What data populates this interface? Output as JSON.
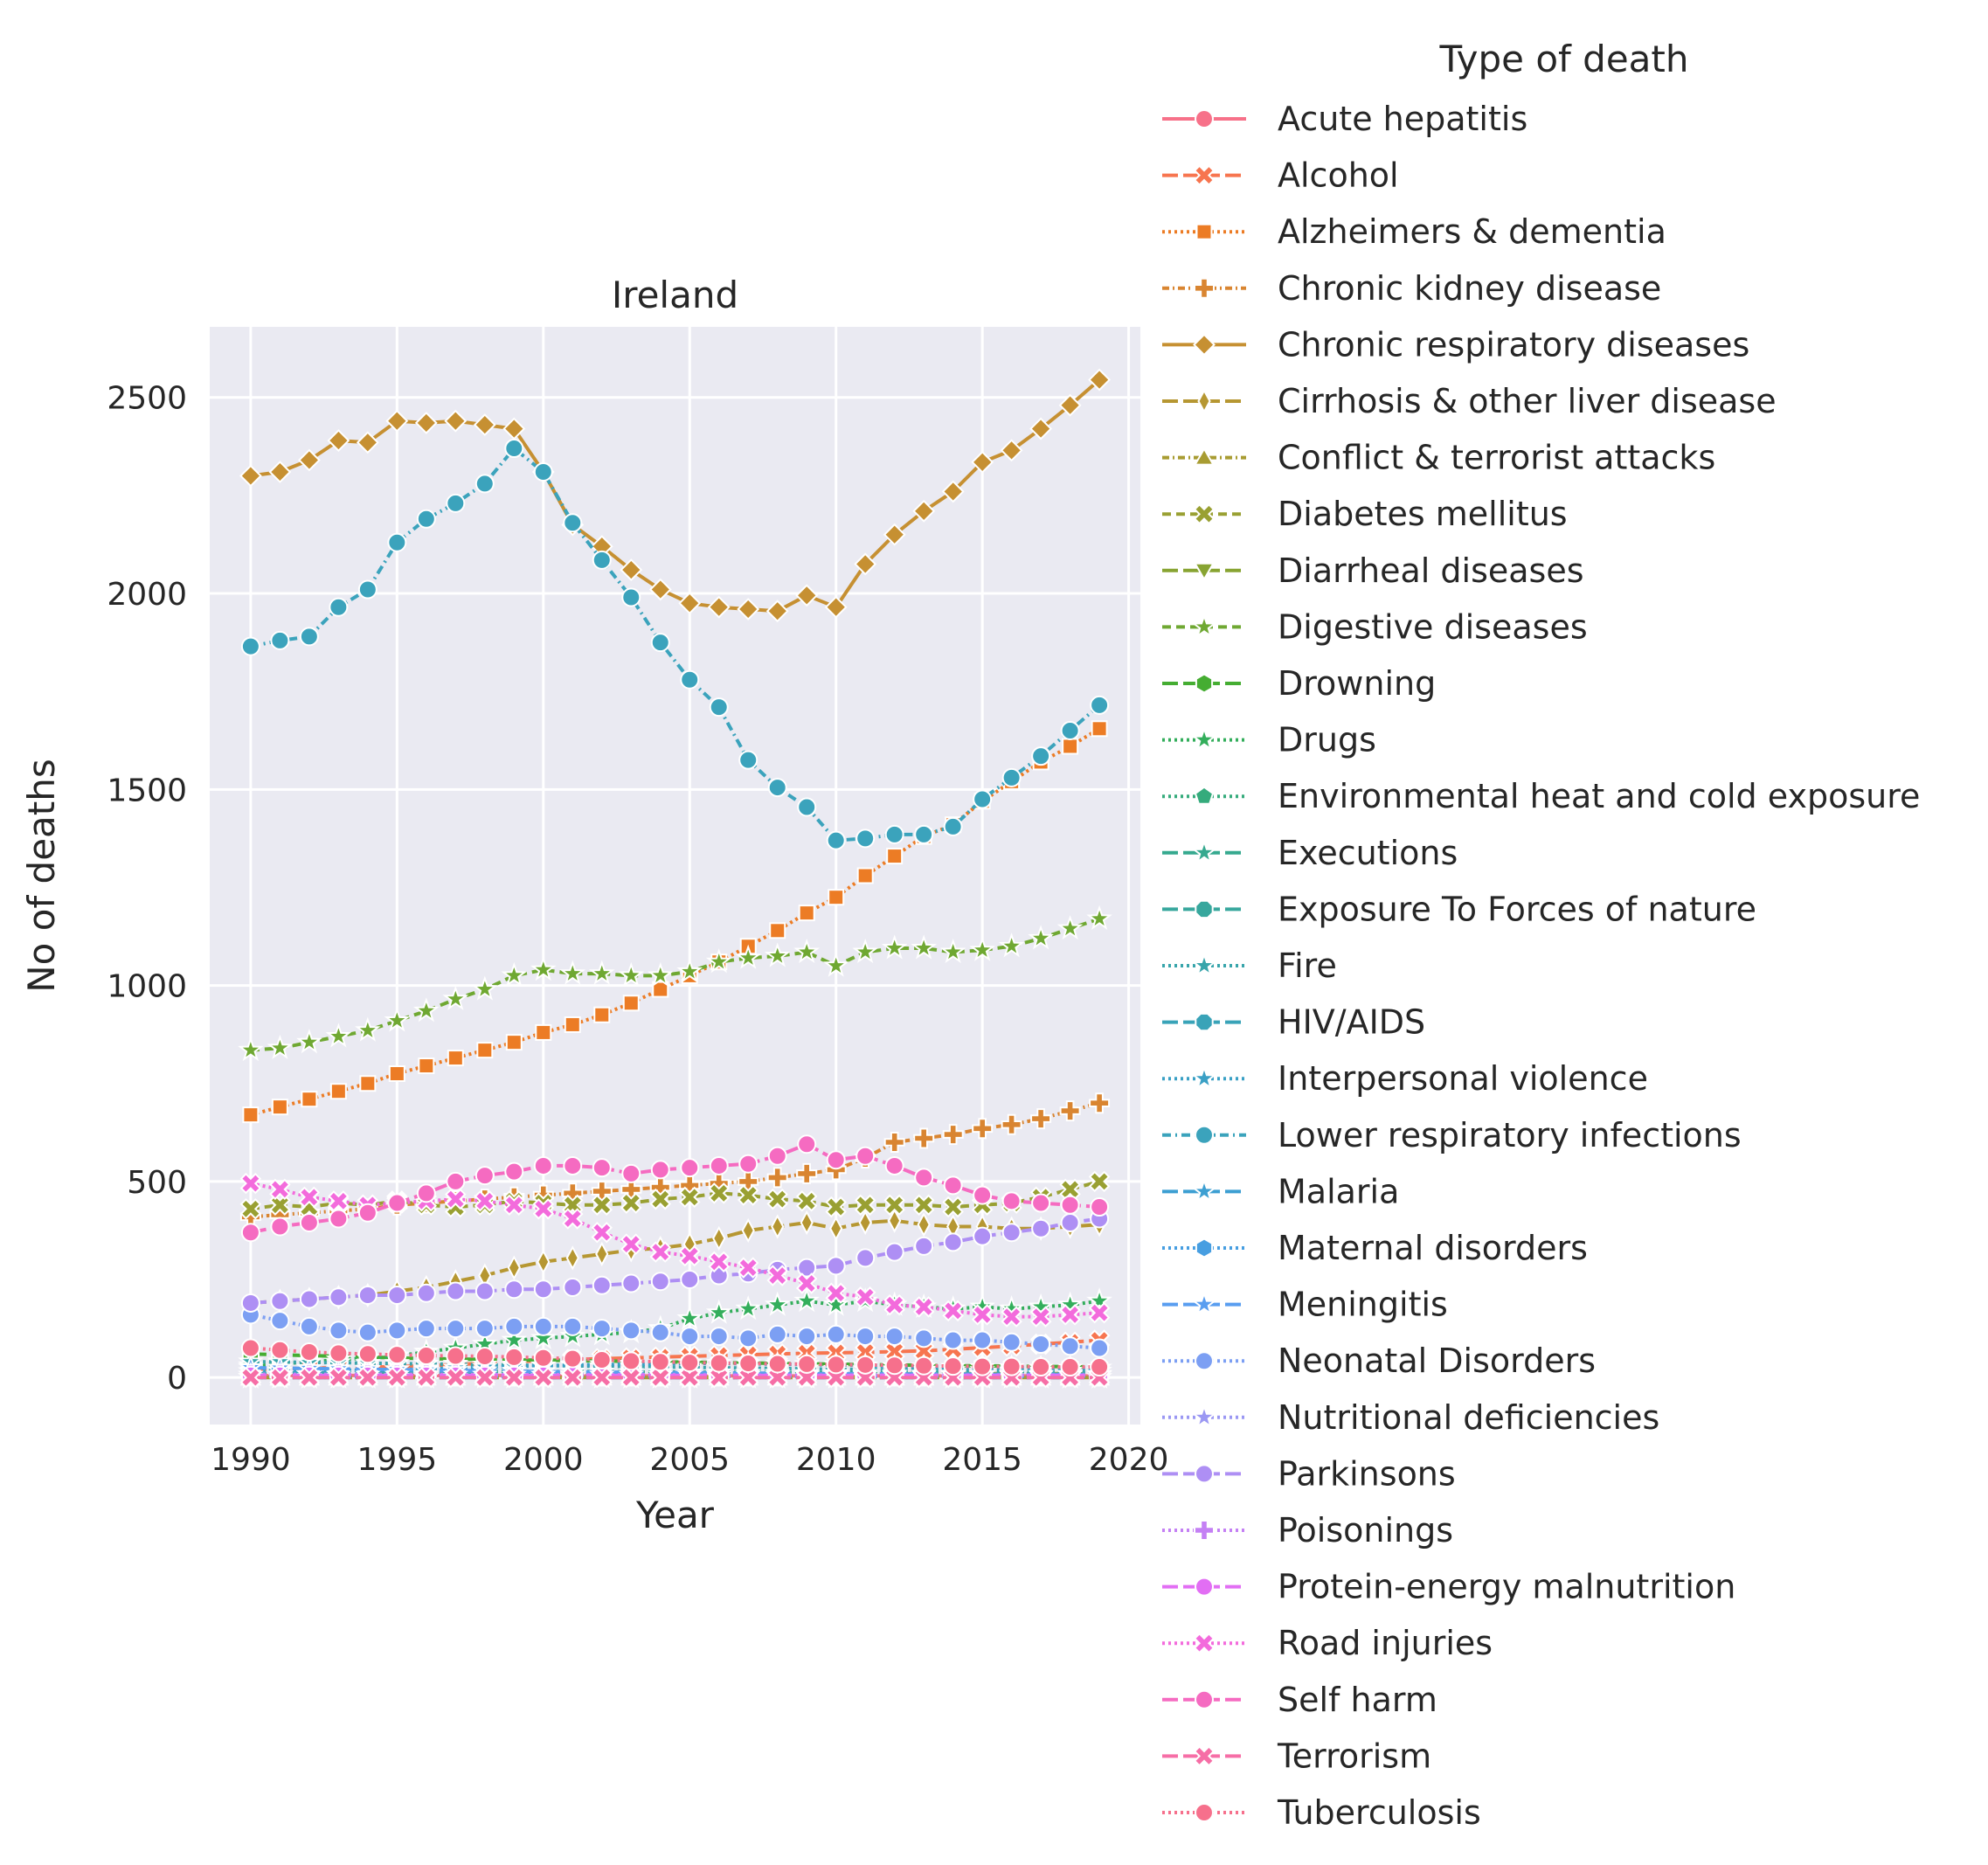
{
  "chart_data": {
    "type": "line",
    "title": "Ireland",
    "xlabel": "Year",
    "ylabel": "No of deaths",
    "xlim": [
      1988.6,
      2020.4
    ],
    "ylim": [
      -120,
      2680
    ],
    "xticks": [
      1990,
      1995,
      2000,
      2005,
      2010,
      2015,
      2020
    ],
    "yticks": [
      0,
      500,
      1000,
      1500,
      2000,
      2500
    ],
    "grid": true,
    "legend_title": "Type of death",
    "legend_placement": "outside-right",
    "x": [
      1990,
      1991,
      1992,
      1993,
      1994,
      1995,
      1996,
      1997,
      1998,
      1999,
      2000,
      2001,
      2002,
      2003,
      2004,
      2005,
      2006,
      2007,
      2008,
      2009,
      2010,
      2011,
      2012,
      2013,
      2014,
      2015,
      2016,
      2017,
      2018,
      2019
    ],
    "series": [
      {
        "name": "Acute hepatitis",
        "color": "#f77189",
        "dash": "",
        "marker": "circle",
        "values": [
          5,
          5,
          5,
          5,
          5,
          5,
          5,
          5,
          5,
          5,
          4,
          4,
          4,
          4,
          4,
          4,
          4,
          4,
          4,
          4,
          4,
          4,
          4,
          4,
          4,
          4,
          4,
          4,
          4,
          4
        ]
      },
      {
        "name": "Alcohol",
        "color": "#f7754f",
        "dash": "18,6",
        "marker": "x",
        "values": [
          20,
          22,
          24,
          25,
          26,
          28,
          30,
          33,
          36,
          40,
          43,
          46,
          48,
          50,
          52,
          54,
          56,
          58,
          60,
          62,
          63,
          64,
          66,
          68,
          72,
          76,
          80,
          85,
          90,
          95
        ]
      },
      {
        "name": "Alzheimers & dementia",
        "color": "#ec7c25",
        "dash": "3,4",
        "marker": "square",
        "values": [
          670,
          690,
          710,
          730,
          750,
          775,
          795,
          815,
          835,
          855,
          880,
          900,
          925,
          955,
          990,
          1025,
          1060,
          1100,
          1140,
          1185,
          1225,
          1280,
          1330,
          1380,
          1410,
          1470,
          1520,
          1570,
          1610,
          1655
        ]
      },
      {
        "name": "Chronic kidney disease",
        "color": "#d98531",
        "dash": "8,4,2,4",
        "marker": "plus",
        "values": [
          410,
          415,
          420,
          425,
          430,
          440,
          445,
          450,
          455,
          460,
          465,
          470,
          475,
          480,
          485,
          490,
          495,
          500,
          510,
          520,
          530,
          560,
          600,
          610,
          620,
          635,
          645,
          660,
          680,
          700
        ]
      },
      {
        "name": "Chronic respiratory diseases",
        "color": "#c69032",
        "dash": "",
        "marker": "diamond",
        "values": [
          2300,
          2310,
          2340,
          2390,
          2385,
          2440,
          2435,
          2440,
          2430,
          2420,
          2310,
          2175,
          2120,
          2060,
          2010,
          1975,
          1965,
          1960,
          1955,
          1995,
          1965,
          2075,
          2150,
          2210,
          2260,
          2335,
          2365,
          2420,
          2480,
          2545
        ]
      },
      {
        "name": "Cirrhosis & other liver disease",
        "color": "#b69732",
        "dash": "18,6",
        "marker": "thin-diamond",
        "values": [
          190,
          195,
          200,
          205,
          210,
          220,
          230,
          245,
          260,
          280,
          295,
          305,
          315,
          325,
          330,
          340,
          355,
          375,
          385,
          395,
          380,
          395,
          400,
          390,
          385,
          385,
          380,
          380,
          385,
          390
        ]
      },
      {
        "name": "Conflict & terrorist attacks",
        "color": "#a89c32",
        "dash": "8,4,2,4",
        "marker": "triangle-up",
        "values": [
          0,
          0,
          0,
          0,
          0,
          0,
          0,
          0,
          0,
          0,
          0,
          0,
          0,
          0,
          0,
          0,
          0,
          0,
          0,
          0,
          0,
          0,
          0,
          0,
          0,
          0,
          0,
          0,
          0,
          0
        ]
      },
      {
        "name": "Diabetes mellitus",
        "color": "#99a032",
        "dash": "10,6",
        "marker": "x",
        "values": [
          430,
          440,
          435,
          445,
          440,
          450,
          440,
          435,
          440,
          450,
          445,
          440,
          440,
          445,
          455,
          460,
          470,
          465,
          455,
          450,
          435,
          440,
          440,
          440,
          435,
          440,
          445,
          460,
          480,
          500
        ]
      },
      {
        "name": "Diarrheal diseases",
        "color": "#88a432",
        "dash": "18,6",
        "marker": "triangle-down",
        "values": [
          8,
          8,
          8,
          8,
          8,
          8,
          8,
          8,
          8,
          8,
          8,
          8,
          8,
          8,
          9,
          9,
          9,
          9,
          9,
          9,
          9,
          9,
          9,
          10,
          10,
          10,
          10,
          10,
          10,
          10
        ]
      },
      {
        "name": "Digestive diseases",
        "color": "#6fa832",
        "dash": "10,6",
        "marker": "star",
        "values": [
          835,
          840,
          855,
          870,
          885,
          910,
          935,
          965,
          990,
          1025,
          1040,
          1030,
          1030,
          1025,
          1025,
          1035,
          1060,
          1070,
          1075,
          1085,
          1050,
          1085,
          1095,
          1095,
          1085,
          1090,
          1100,
          1120,
          1145,
          1170
        ]
      },
      {
        "name": "Drowning",
        "color": "#45ad32",
        "dash": "18,6",
        "marker": "hexagon",
        "values": [
          60,
          58,
          56,
          54,
          52,
          50,
          48,
          47,
          46,
          45,
          44,
          43,
          42,
          41,
          40,
          39,
          38,
          37,
          36,
          35,
          34,
          33,
          32,
          31,
          30,
          30,
          29,
          28,
          28,
          27
        ]
      },
      {
        "name": "Drugs",
        "color": "#33ae5b",
        "dash": "3,4",
        "marker": "star",
        "values": [
          30,
          35,
          40,
          45,
          50,
          55,
          65,
          75,
          85,
          95,
          100,
          105,
          110,
          115,
          125,
          150,
          165,
          175,
          185,
          195,
          185,
          195,
          185,
          180,
          175,
          180,
          175,
          180,
          185,
          195
        ]
      },
      {
        "name": "Environmental heat and cold exposure",
        "color": "#35ab7c",
        "dash": "3,4",
        "marker": "pentagon",
        "values": [
          20,
          20,
          19,
          19,
          18,
          18,
          17,
          17,
          16,
          16,
          15,
          15,
          15,
          14,
          14,
          14,
          13,
          13,
          13,
          12,
          12,
          12,
          12,
          12,
          11,
          11,
          11,
          11,
          11,
          11
        ]
      },
      {
        "name": "Executions",
        "color": "#36a98f",
        "dash": "18,6",
        "marker": "star",
        "values": [
          0,
          0,
          0,
          0,
          0,
          0,
          0,
          0,
          0,
          0,
          0,
          0,
          0,
          0,
          0,
          0,
          0,
          0,
          0,
          0,
          0,
          0,
          0,
          0,
          0,
          0,
          0,
          0,
          0,
          0
        ]
      },
      {
        "name": "Exposure To Forces of nature",
        "color": "#37a79d",
        "dash": "18,6",
        "marker": "octagon",
        "values": [
          1,
          1,
          1,
          1,
          1,
          1,
          1,
          1,
          1,
          1,
          1,
          1,
          1,
          1,
          1,
          1,
          1,
          1,
          1,
          1,
          1,
          1,
          1,
          1,
          1,
          1,
          1,
          1,
          1,
          1
        ]
      },
      {
        "name": "Fire",
        "color": "#38a5ab",
        "dash": "3,4",
        "marker": "star",
        "values": [
          40,
          40,
          38,
          38,
          36,
          36,
          34,
          34,
          32,
          32,
          30,
          30,
          28,
          28,
          27,
          26,
          25,
          24,
          23,
          22,
          21,
          20,
          20,
          19,
          18,
          18,
          17,
          17,
          16,
          16
        ]
      },
      {
        "name": "HIV/AIDS",
        "color": "#39a3b8",
        "dash": "18,6",
        "marker": "octagon",
        "values": [
          10,
          11,
          12,
          13,
          14,
          15,
          13,
          10,
          8,
          7,
          6,
          6,
          6,
          6,
          6,
          6,
          6,
          6,
          6,
          6,
          6,
          6,
          6,
          5,
          5,
          5,
          5,
          5,
          5,
          5
        ]
      },
      {
        "name": "Interpersonal violence",
        "color": "#3aa0c5",
        "dash": "3,4",
        "marker": "star",
        "values": [
          15,
          16,
          17,
          18,
          19,
          20,
          22,
          24,
          26,
          28,
          30,
          32,
          33,
          34,
          35,
          36,
          36,
          35,
          34,
          33,
          32,
          30,
          28,
          27,
          26,
          25,
          25,
          24,
          24,
          24
        ]
      },
      {
        "name": "Lower respiratory infections",
        "color": "#3ba3bc",
        "dash": "10,5,2,5",
        "marker": "circle",
        "values": [
          1865,
          1880,
          1890,
          1965,
          2010,
          2130,
          2190,
          2230,
          2280,
          2370,
          2310,
          2180,
          2085,
          1990,
          1875,
          1780,
          1710,
          1575,
          1505,
          1455,
          1370,
          1375,
          1385,
          1385,
          1405,
          1475,
          1530,
          1585,
          1650,
          1715
        ]
      },
      {
        "name": "Malaria",
        "color": "#3d9fd2",
        "dash": "18,6",
        "marker": "star",
        "values": [
          0,
          0,
          0,
          0,
          0,
          0,
          0,
          0,
          0,
          0,
          0,
          0,
          0,
          0,
          0,
          0,
          0,
          0,
          0,
          0,
          0,
          0,
          0,
          0,
          0,
          0,
          0,
          0,
          0,
          0
        ]
      },
      {
        "name": "Maternal disorders",
        "color": "#479ee1",
        "dash": "3,4",
        "marker": "hexagon",
        "values": [
          3,
          3,
          3,
          3,
          3,
          3,
          3,
          3,
          3,
          3,
          3,
          3,
          3,
          3,
          3,
          3,
          3,
          3,
          3,
          3,
          3,
          3,
          3,
          3,
          3,
          3,
          3,
          3,
          3,
          3
        ]
      },
      {
        "name": "Meningitis",
        "color": "#5a9ef0",
        "dash": "18,6",
        "marker": "star",
        "values": [
          25,
          24,
          23,
          22,
          21,
          20,
          19,
          18,
          17,
          16,
          15,
          14,
          14,
          13,
          13,
          12,
          12,
          11,
          11,
          10,
          10,
          10,
          9,
          9,
          9,
          8,
          8,
          8,
          8,
          8
        ]
      },
      {
        "name": "Neonatal Disorders",
        "color": "#7c9ff3",
        "dash": "3,4",
        "marker": "circle",
        "values": [
          160,
          145,
          130,
          120,
          115,
          120,
          125,
          125,
          125,
          130,
          130,
          130,
          125,
          120,
          115,
          105,
          105,
          100,
          110,
          105,
          110,
          105,
          105,
          100,
          95,
          95,
          90,
          85,
          80,
          75
        ]
      },
      {
        "name": "Nutritional deficiencies",
        "color": "#9b98f3",
        "dash": "3,4",
        "marker": "star",
        "values": [
          6,
          6,
          6,
          6,
          6,
          6,
          6,
          6,
          6,
          6,
          6,
          6,
          6,
          6,
          6,
          6,
          6,
          6,
          6,
          6,
          6,
          6,
          6,
          6,
          6,
          6,
          6,
          6,
          6,
          6
        ]
      },
      {
        "name": "Parkinsons",
        "color": "#ae8ff4",
        "dash": "18,6",
        "marker": "circle",
        "values": [
          190,
          195,
          200,
          205,
          210,
          210,
          215,
          220,
          220,
          225,
          225,
          230,
          235,
          240,
          245,
          250,
          260,
          265,
          275,
          280,
          285,
          305,
          320,
          335,
          345,
          360,
          370,
          380,
          395,
          405
        ]
      },
      {
        "name": "Poisonings",
        "color": "#c480f4",
        "dash": "3,4",
        "marker": "plus",
        "values": [
          8,
          8,
          8,
          8,
          8,
          8,
          8,
          8,
          7,
          7,
          7,
          7,
          7,
          7,
          7,
          7,
          6,
          6,
          6,
          6,
          6,
          6,
          6,
          6,
          6,
          6,
          6,
          6,
          6,
          6
        ]
      },
      {
        "name": "Protein-energy malnutrition",
        "color": "#e26ef4",
        "dash": "18,6",
        "marker": "circle",
        "values": [
          5,
          5,
          5,
          5,
          5,
          5,
          5,
          5,
          5,
          5,
          5,
          5,
          5,
          5,
          5,
          5,
          5,
          5,
          5,
          5,
          5,
          5,
          5,
          5,
          5,
          5,
          5,
          5,
          5,
          5
        ]
      },
      {
        "name": "Road injuries",
        "color": "#f36bdc",
        "dash": "3,4",
        "marker": "x",
        "values": [
          495,
          480,
          460,
          450,
          440,
          445,
          450,
          455,
          450,
          440,
          430,
          405,
          370,
          340,
          320,
          310,
          295,
          280,
          260,
          240,
          215,
          205,
          185,
          180,
          170,
          160,
          155,
          155,
          160,
          165
        ]
      },
      {
        "name": "Self harm",
        "color": "#f56bc1",
        "dash": "18,6",
        "marker": "circle",
        "values": [
          370,
          385,
          395,
          405,
          420,
          445,
          470,
          500,
          515,
          525,
          540,
          540,
          535,
          520,
          530,
          535,
          540,
          545,
          565,
          595,
          555,
          565,
          540,
          510,
          490,
          465,
          450,
          445,
          440,
          435
        ]
      },
      {
        "name": "Terrorism",
        "color": "#f66ea6",
        "dash": "18,6",
        "marker": "x",
        "values": [
          0,
          0,
          0,
          0,
          0,
          0,
          0,
          0,
          0,
          0,
          0,
          0,
          0,
          0,
          0,
          0,
          0,
          0,
          0,
          0,
          0,
          0,
          0,
          0,
          0,
          0,
          0,
          0,
          0,
          0
        ]
      },
      {
        "name": "Tuberculosis",
        "color": "#f6708c",
        "dash": "3,4",
        "marker": "circle",
        "values": [
          75,
          70,
          65,
          62,
          60,
          58,
          56,
          55,
          54,
          52,
          50,
          48,
          45,
          42,
          40,
          38,
          37,
          36,
          35,
          34,
          33,
          32,
          31,
          30,
          29,
          28,
          28,
          27,
          27,
          27
        ]
      }
    ]
  }
}
